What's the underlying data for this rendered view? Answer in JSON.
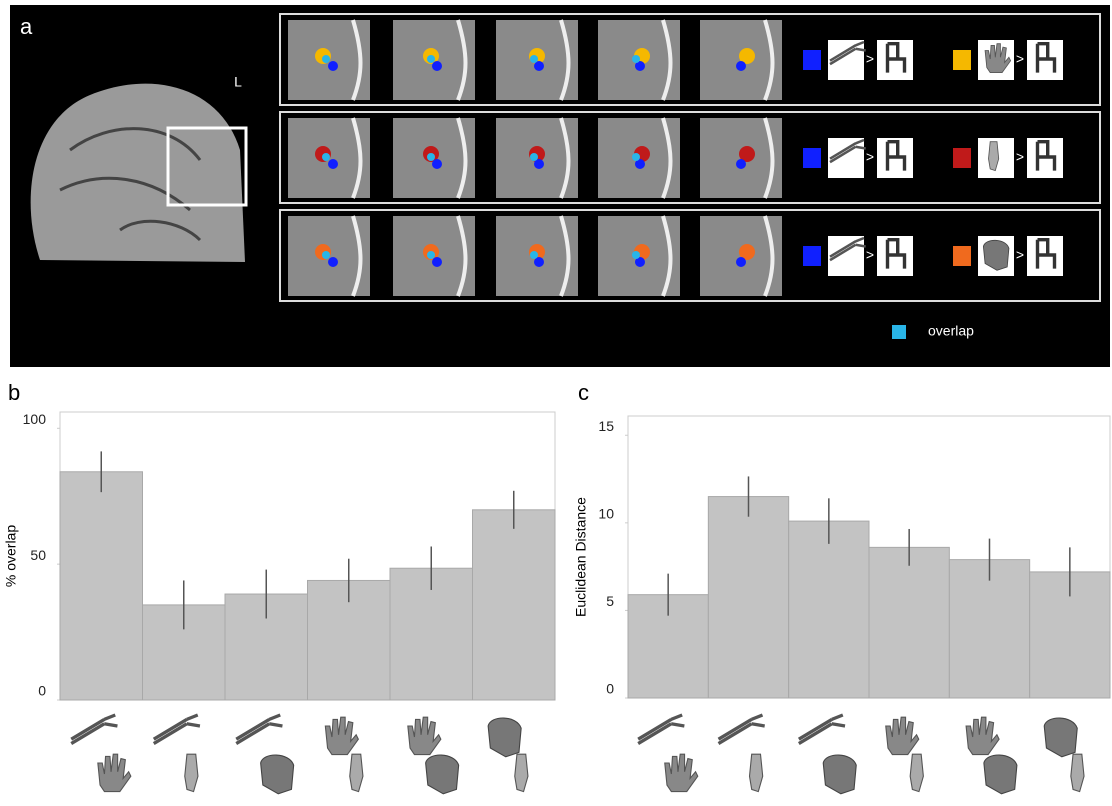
{
  "panel_a": {
    "label": "a",
    "side_label": "L",
    "comparison": ">",
    "overlap_label": "overlap"
  },
  "chart_data": [
    {
      "type": "bar",
      "panel": "b",
      "y_label": "% overlap",
      "categories": [
        null,
        null,
        null,
        null,
        null,
        null
      ],
      "values": [
        84,
        35,
        39,
        44,
        48.5,
        70
      ],
      "errors": [
        7.5,
        9,
        9,
        8,
        8,
        7
      ],
      "color": "#c3c3c3",
      "ylim": [
        0,
        106
      ],
      "yticks": [
        0,
        50,
        100
      ]
    },
    {
      "type": "bar",
      "panel": "c",
      "y_label": "Euclidean Distance",
      "categories": [
        null,
        null,
        null,
        null,
        null,
        null
      ],
      "values": [
        5.9,
        11.5,
        10.1,
        8.6,
        7.9,
        7.2
      ],
      "errors": [
        1.2,
        1.15,
        1.3,
        1.05,
        1.2,
        1.4
      ],
      "color": "#c3c3c3",
      "ylim": [
        0,
        16.1
      ],
      "yticks": [
        0,
        5,
        10,
        15
      ]
    }
  ]
}
